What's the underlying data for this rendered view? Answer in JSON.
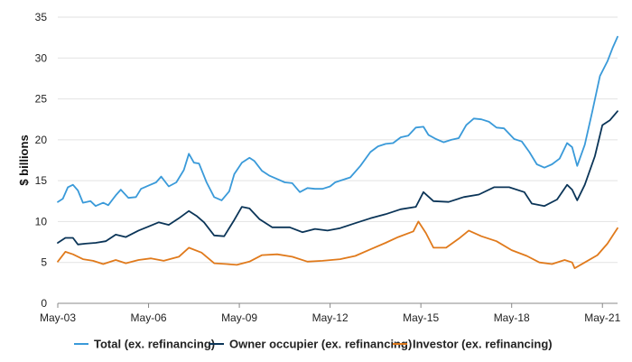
{
  "chart_data": {
    "type": "line",
    "ylabel": "$ billions",
    "ylim": [
      0,
      35
    ],
    "yticks": [
      "0",
      "5",
      "10",
      "15",
      "20",
      "25",
      "30",
      "35"
    ],
    "xticks": [
      "May-03",
      "May-06",
      "May-09",
      "May-12",
      "May-15",
      "May-18",
      "May-21"
    ],
    "xlim": [
      "2003-05",
      "2021-11"
    ],
    "grid": "horizontal",
    "legend_position": "bottom",
    "colors": {
      "total": "#3a9ad9",
      "owner": "#0b3558",
      "investor": "#e07a1c"
    },
    "series": [
      {
        "name": "Total (ex. refinancing)",
        "key": "total",
        "points": [
          [
            "2003-05",
            12.4
          ],
          [
            "2003-07",
            12.8
          ],
          [
            "2003-09",
            14.2
          ],
          [
            "2003-11",
            14.5
          ],
          [
            "2004-01",
            13.8
          ],
          [
            "2004-03",
            12.3
          ],
          [
            "2004-06",
            12.5
          ],
          [
            "2004-08",
            11.9
          ],
          [
            "2004-11",
            12.3
          ],
          [
            "2005-01",
            12.0
          ],
          [
            "2005-04",
            13.2
          ],
          [
            "2005-06",
            13.9
          ],
          [
            "2005-09",
            12.9
          ],
          [
            "2005-12",
            13.0
          ],
          [
            "2006-02",
            14.0
          ],
          [
            "2006-05",
            14.4
          ],
          [
            "2006-08",
            14.8
          ],
          [
            "2006-10",
            15.5
          ],
          [
            "2007-01",
            14.3
          ],
          [
            "2007-04",
            14.8
          ],
          [
            "2007-07",
            16.3
          ],
          [
            "2007-09",
            18.3
          ],
          [
            "2007-11",
            17.2
          ],
          [
            "2008-01",
            17.1
          ],
          [
            "2008-04",
            14.8
          ],
          [
            "2008-07",
            13.0
          ],
          [
            "2008-10",
            12.6
          ],
          [
            "2009-01",
            13.7
          ],
          [
            "2009-03",
            15.8
          ],
          [
            "2009-06",
            17.2
          ],
          [
            "2009-09",
            17.8
          ],
          [
            "2009-11",
            17.4
          ],
          [
            "2010-02",
            16.2
          ],
          [
            "2010-05",
            15.6
          ],
          [
            "2010-08",
            15.2
          ],
          [
            "2010-11",
            14.8
          ],
          [
            "2011-02",
            14.7
          ],
          [
            "2011-05",
            13.6
          ],
          [
            "2011-08",
            14.1
          ],
          [
            "2011-11",
            14.0
          ],
          [
            "2012-02",
            14.0
          ],
          [
            "2012-05",
            14.3
          ],
          [
            "2012-07",
            14.8
          ],
          [
            "2012-09",
            15.0
          ],
          [
            "2013-01",
            15.4
          ],
          [
            "2013-05",
            16.8
          ],
          [
            "2013-09",
            18.5
          ],
          [
            "2013-12",
            19.2
          ],
          [
            "2014-03",
            19.5
          ],
          [
            "2014-06",
            19.6
          ],
          [
            "2014-09",
            20.3
          ],
          [
            "2014-12",
            20.5
          ],
          [
            "2015-03",
            21.5
          ],
          [
            "2015-06",
            21.6
          ],
          [
            "2015-08",
            20.6
          ],
          [
            "2015-11",
            20.1
          ],
          [
            "2016-02",
            19.7
          ],
          [
            "2016-05",
            20.0
          ],
          [
            "2016-08",
            20.2
          ],
          [
            "2016-11",
            21.8
          ],
          [
            "2017-02",
            22.6
          ],
          [
            "2017-05",
            22.5
          ],
          [
            "2017-08",
            22.2
          ],
          [
            "2017-11",
            21.5
          ],
          [
            "2018-02",
            21.4
          ],
          [
            "2018-06",
            20.1
          ],
          [
            "2018-09",
            19.8
          ],
          [
            "2018-12",
            18.5
          ],
          [
            "2019-03",
            17.0
          ],
          [
            "2019-06",
            16.6
          ],
          [
            "2019-09",
            17.0
          ],
          [
            "2019-12",
            17.7
          ],
          [
            "2020-03",
            19.6
          ],
          [
            "2020-05",
            19.1
          ],
          [
            "2020-07",
            16.8
          ],
          [
            "2020-10",
            19.4
          ],
          [
            "2021-01",
            23.5
          ],
          [
            "2021-04",
            27.8
          ],
          [
            "2021-07",
            29.6
          ],
          [
            "2021-09",
            31.2
          ],
          [
            "2021-11",
            32.6
          ]
        ]
      },
      {
        "name": "Owner occupier (ex. refinancing)",
        "key": "owner",
        "points": [
          [
            "2003-05",
            7.4
          ],
          [
            "2003-08",
            8.0
          ],
          [
            "2003-11",
            8.0
          ],
          [
            "2004-01",
            7.2
          ],
          [
            "2004-04",
            7.3
          ],
          [
            "2004-08",
            7.4
          ],
          [
            "2004-12",
            7.6
          ],
          [
            "2005-04",
            8.4
          ],
          [
            "2005-08",
            8.1
          ],
          [
            "2006-01",
            8.9
          ],
          [
            "2006-05",
            9.4
          ],
          [
            "2006-09",
            9.9
          ],
          [
            "2007-01",
            9.6
          ],
          [
            "2007-05",
            10.4
          ],
          [
            "2007-09",
            11.3
          ],
          [
            "2007-12",
            10.7
          ],
          [
            "2008-03",
            9.9
          ],
          [
            "2008-07",
            8.3
          ],
          [
            "2008-11",
            8.2
          ],
          [
            "2009-03",
            10.2
          ],
          [
            "2009-06",
            11.8
          ],
          [
            "2009-09",
            11.6
          ],
          [
            "2010-01",
            10.3
          ],
          [
            "2010-06",
            9.3
          ],
          [
            "2011-01",
            9.3
          ],
          [
            "2011-06",
            8.7
          ],
          [
            "2011-11",
            9.1
          ],
          [
            "2012-04",
            8.9
          ],
          [
            "2012-09",
            9.2
          ],
          [
            "2013-03",
            9.8
          ],
          [
            "2013-09",
            10.4
          ],
          [
            "2014-03",
            10.9
          ],
          [
            "2014-09",
            11.5
          ],
          [
            "2015-03",
            11.8
          ],
          [
            "2015-06",
            13.6
          ],
          [
            "2015-10",
            12.5
          ],
          [
            "2016-04",
            12.4
          ],
          [
            "2016-10",
            13.0
          ],
          [
            "2017-04",
            13.3
          ],
          [
            "2017-10",
            14.2
          ],
          [
            "2018-04",
            14.2
          ],
          [
            "2018-10",
            13.6
          ],
          [
            "2019-01",
            12.2
          ],
          [
            "2019-06",
            11.9
          ],
          [
            "2019-11",
            12.7
          ],
          [
            "2020-03",
            14.5
          ],
          [
            "2020-05",
            13.9
          ],
          [
            "2020-07",
            12.6
          ],
          [
            "2020-10",
            14.5
          ],
          [
            "2021-02",
            18.0
          ],
          [
            "2021-05",
            21.8
          ],
          [
            "2021-08",
            22.4
          ],
          [
            "2021-11",
            23.5
          ]
        ]
      },
      {
        "name": "Investor (ex. refinancing)",
        "key": "investor",
        "points": [
          [
            "2003-05",
            5.1
          ],
          [
            "2003-08",
            6.3
          ],
          [
            "2003-11",
            6.0
          ],
          [
            "2004-03",
            5.4
          ],
          [
            "2004-07",
            5.2
          ],
          [
            "2004-11",
            4.8
          ],
          [
            "2005-04",
            5.3
          ],
          [
            "2005-08",
            4.9
          ],
          [
            "2006-01",
            5.3
          ],
          [
            "2006-06",
            5.5
          ],
          [
            "2006-11",
            5.2
          ],
          [
            "2007-05",
            5.7
          ],
          [
            "2007-09",
            6.8
          ],
          [
            "2008-02",
            6.2
          ],
          [
            "2008-07",
            4.9
          ],
          [
            "2008-12",
            4.8
          ],
          [
            "2009-04",
            4.7
          ],
          [
            "2009-09",
            5.1
          ],
          [
            "2010-02",
            5.9
          ],
          [
            "2010-08",
            6.0
          ],
          [
            "2011-02",
            5.7
          ],
          [
            "2011-08",
            5.1
          ],
          [
            "2012-02",
            5.2
          ],
          [
            "2012-09",
            5.4
          ],
          [
            "2013-03",
            5.8
          ],
          [
            "2013-09",
            6.6
          ],
          [
            "2014-03",
            7.4
          ],
          [
            "2014-08",
            8.1
          ],
          [
            "2015-02",
            8.8
          ],
          [
            "2015-04",
            10.0
          ],
          [
            "2015-07",
            8.6
          ],
          [
            "2015-10",
            6.8
          ],
          [
            "2016-03",
            6.8
          ],
          [
            "2016-08",
            7.9
          ],
          [
            "2016-12",
            8.9
          ],
          [
            "2017-05",
            8.2
          ],
          [
            "2017-11",
            7.6
          ],
          [
            "2018-05",
            6.5
          ],
          [
            "2018-11",
            5.8
          ],
          [
            "2019-04",
            5.0
          ],
          [
            "2019-09",
            4.8
          ],
          [
            "2020-02",
            5.3
          ],
          [
            "2020-05",
            5.0
          ],
          [
            "2020-06",
            4.3
          ],
          [
            "2020-10",
            5.0
          ],
          [
            "2021-03",
            5.9
          ],
          [
            "2021-07",
            7.3
          ],
          [
            "2021-11",
            9.2
          ]
        ]
      }
    ]
  }
}
